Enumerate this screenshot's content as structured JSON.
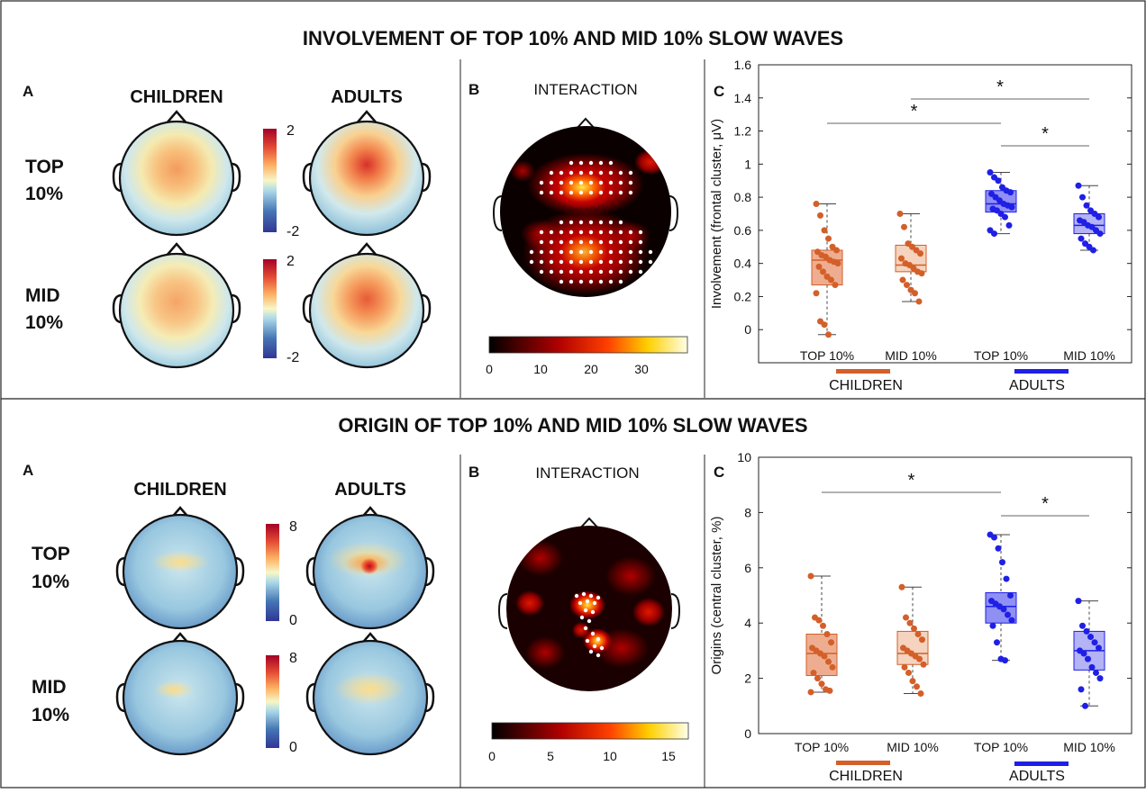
{
  "panels": [
    {
      "title": "INVOLVEMENT OF TOP 10% AND MID 10% SLOW WAVES",
      "label_a": "A",
      "label_b": "B",
      "label_c": "C",
      "col_children": "CHILDREN",
      "col_adults": "ADULTS",
      "row_top": [
        "TOP",
        "10%"
      ],
      "row_mid": [
        "MID",
        "10%"
      ],
      "topo_colorbar_max": "2",
      "topo_colorbar_min": "-2",
      "interaction_title": "INTERACTION",
      "interaction_ticks": [
        "0",
        "10",
        "20",
        "30"
      ],
      "group_children": "CHILDREN",
      "group_adults": "ADULTS",
      "group_children_color": "#d35f29",
      "group_adults_color": "#1f1fe6"
    },
    {
      "title": "ORIGIN OF TOP 10% AND MID 10% SLOW WAVES",
      "label_a": "A",
      "label_b": "B",
      "label_c": "C",
      "col_children": "CHILDREN",
      "col_adults": "ADULTS",
      "row_top": [
        "TOP",
        "10%"
      ],
      "row_mid": [
        "MID",
        "10%"
      ],
      "topo_colorbar_max": "8",
      "topo_colorbar_min": "0",
      "interaction_title": "INTERACTION",
      "interaction_ticks": [
        "0",
        "5",
        "10",
        "15"
      ],
      "group_children": "CHILDREN",
      "group_adults": "ADULTS",
      "group_children_color": "#d35f29",
      "group_adults_color": "#1f1fe6"
    }
  ],
  "chart_data": [
    {
      "type": "box",
      "ylabel": "Involvement (frontal cluster, μV)",
      "ylim": [
        -0.2,
        1.6
      ],
      "yticks": [
        "0",
        "0.2",
        "0.4",
        "0.6",
        "0.8",
        "1",
        "1.2",
        "1.4",
        "1.6"
      ],
      "ytick_values": [
        0,
        0.2,
        0.4,
        0.6,
        0.8,
        1,
        1.2,
        1.4,
        1.6
      ],
      "categories": [
        "TOP 10%",
        "MID 10%",
        "TOP 10%",
        "MID 10%"
      ],
      "groups": [
        "CHILDREN",
        "CHILDREN",
        "ADULTS",
        "ADULTS"
      ],
      "box_stats": [
        {
          "min": -0.03,
          "q1": 0.27,
          "median": 0.42,
          "q3": 0.48,
          "max": 0.76
        },
        {
          "min": 0.17,
          "q1": 0.35,
          "median": 0.39,
          "q3": 0.51,
          "max": 0.7
        },
        {
          "min": 0.58,
          "q1": 0.71,
          "median": 0.76,
          "q3": 0.84,
          "max": 0.95
        },
        {
          "min": 0.48,
          "q1": 0.58,
          "median": 0.63,
          "q3": 0.7,
          "max": 0.87
        }
      ],
      "points": [
        [
          0.76,
          0.69,
          0.6,
          0.55,
          0.5,
          0.48,
          0.47,
          0.45,
          0.44,
          0.42,
          0.41,
          0.4,
          0.38,
          0.35,
          0.32,
          0.3,
          0.27,
          0.22,
          0.05,
          0.03,
          -0.03
        ],
        [
          0.7,
          0.62,
          0.52,
          0.5,
          0.48,
          0.46,
          0.43,
          0.4,
          0.39,
          0.37,
          0.35,
          0.34,
          0.3,
          0.27,
          0.24,
          0.22,
          0.17
        ],
        [
          0.95,
          0.92,
          0.9,
          0.86,
          0.84,
          0.83,
          0.82,
          0.8,
          0.78,
          0.76,
          0.75,
          0.74,
          0.73,
          0.72,
          0.7,
          0.68,
          0.63,
          0.6,
          0.58
        ],
        [
          0.87,
          0.8,
          0.75,
          0.72,
          0.7,
          0.68,
          0.66,
          0.65,
          0.63,
          0.62,
          0.6,
          0.58,
          0.55,
          0.52,
          0.5,
          0.48
        ]
      ],
      "significance": [
        {
          "from": 0,
          "to": 2,
          "label": "*"
        },
        {
          "from": 1,
          "to": 3,
          "label": "*"
        },
        {
          "from": 2,
          "to": 3,
          "label": "*"
        }
      ]
    },
    {
      "type": "box",
      "ylabel": "Origins (central cluster, %)",
      "ylim": [
        0,
        10
      ],
      "yticks": [
        "0",
        "2",
        "4",
        "6",
        "8",
        "10"
      ],
      "ytick_values": [
        0,
        2,
        4,
        6,
        8,
        10
      ],
      "categories": [
        "TOP 10%",
        "MID 10%",
        "TOP 10%",
        "MID 10%"
      ],
      "groups": [
        "CHILDREN",
        "CHILDREN",
        "ADULTS",
        "ADULTS"
      ],
      "box_stats": [
        {
          "min": 1.5,
          "q1": 2.1,
          "median": 2.9,
          "q3": 3.6,
          "max": 5.7
        },
        {
          "min": 1.45,
          "q1": 2.5,
          "median": 2.9,
          "q3": 3.7,
          "max": 5.3
        },
        {
          "min": 2.65,
          "q1": 4.0,
          "median": 4.6,
          "q3": 5.1,
          "max": 7.2
        },
        {
          "min": 1.0,
          "q1": 2.3,
          "median": 3.0,
          "q3": 3.7,
          "max": 4.8
        }
      ],
      "points": [
        [
          5.7,
          4.2,
          4.1,
          3.9,
          3.6,
          3.3,
          3.1,
          3.0,
          2.9,
          2.8,
          2.6,
          2.4,
          2.2,
          2.0,
          1.8,
          1.6,
          1.55,
          1.5
        ],
        [
          5.3,
          4.2,
          4.0,
          3.8,
          3.6,
          3.4,
          3.1,
          3.0,
          2.9,
          2.8,
          2.7,
          2.5,
          2.4,
          2.2,
          1.9,
          1.7,
          1.45
        ],
        [
          7.2,
          7.1,
          6.7,
          6.2,
          5.6,
          5.0,
          4.8,
          4.7,
          4.6,
          4.5,
          4.3,
          4.1,
          3.9,
          3.3,
          2.7,
          2.65
        ],
        [
          4.8,
          3.9,
          3.7,
          3.5,
          3.3,
          3.1,
          3.0,
          2.9,
          2.7,
          2.4,
          2.2,
          2.0,
          1.6,
          1.0
        ]
      ],
      "significance": [
        {
          "from": 0,
          "to": 2,
          "label": "*"
        },
        {
          "from": 2,
          "to": 3,
          "label": "*"
        }
      ]
    }
  ]
}
